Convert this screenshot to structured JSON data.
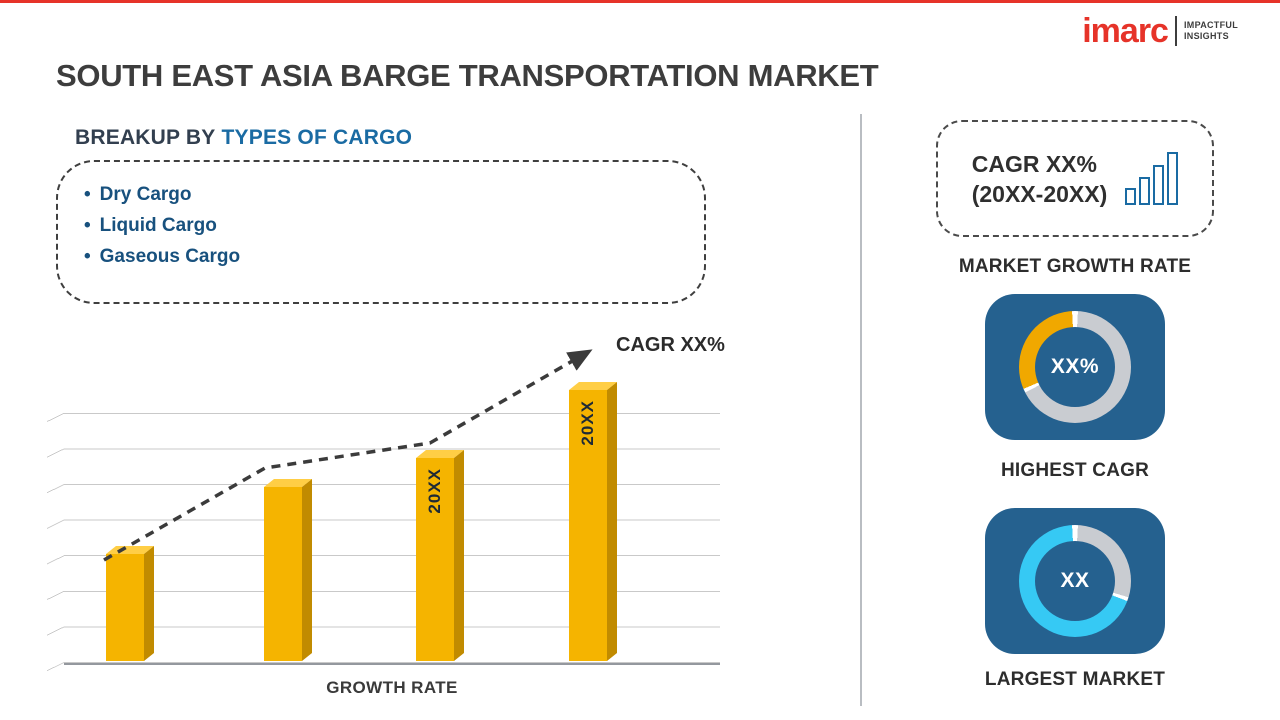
{
  "brand": {
    "logo_text": "imarc",
    "tagline_line1": "IMPACTFUL",
    "tagline_line2": "INSIGHTS"
  },
  "page_title": "SOUTH EAST ASIA BARGE TRANSPORTATION MARKET",
  "left": {
    "heading_prefix": "BREAKUP BY",
    "heading_accent": "TYPES OF CARGO",
    "cargo_items": [
      "Dry Cargo",
      "Liquid Cargo",
      "Gaseous Cargo"
    ]
  },
  "chart_data": {
    "type": "bar",
    "title": "",
    "categories": [
      "",
      "",
      "20XX",
      "20XX"
    ],
    "values": [
      3.0,
      4.9,
      5.7,
      7.6
    ],
    "bar_labels": [
      "",
      "",
      "20XX",
      "20XX"
    ],
    "xlabel": "GROWTH RATE",
    "ylabel": "",
    "ylim": [
      0,
      8
    ],
    "grid": true,
    "legend": false,
    "annotation": "CAGR XX%",
    "trend_line": "dashed ascending arrow",
    "bar_color": "#F5B400"
  },
  "right": {
    "growth_box": {
      "line1": "CAGR XX%",
      "line2": "(20XX-20XX)"
    },
    "market_growth_label": "MARKET GROWTH RATE",
    "highest_cagr": {
      "value": "XX%",
      "label": "HIGHEST CAGR",
      "arc_color": "#F0A800"
    },
    "largest_market": {
      "value": "XX",
      "label": "LARGEST MARKET",
      "arc_color": "#36C9F4"
    }
  },
  "colors": {
    "accent_blue": "#1A6BA3",
    "title_gray": "#3D3D3D",
    "logo_red": "#E63329",
    "panel_blue": "#25618F",
    "donut_track": "#C9CCD1",
    "bar_yellow": "#F5B400"
  }
}
